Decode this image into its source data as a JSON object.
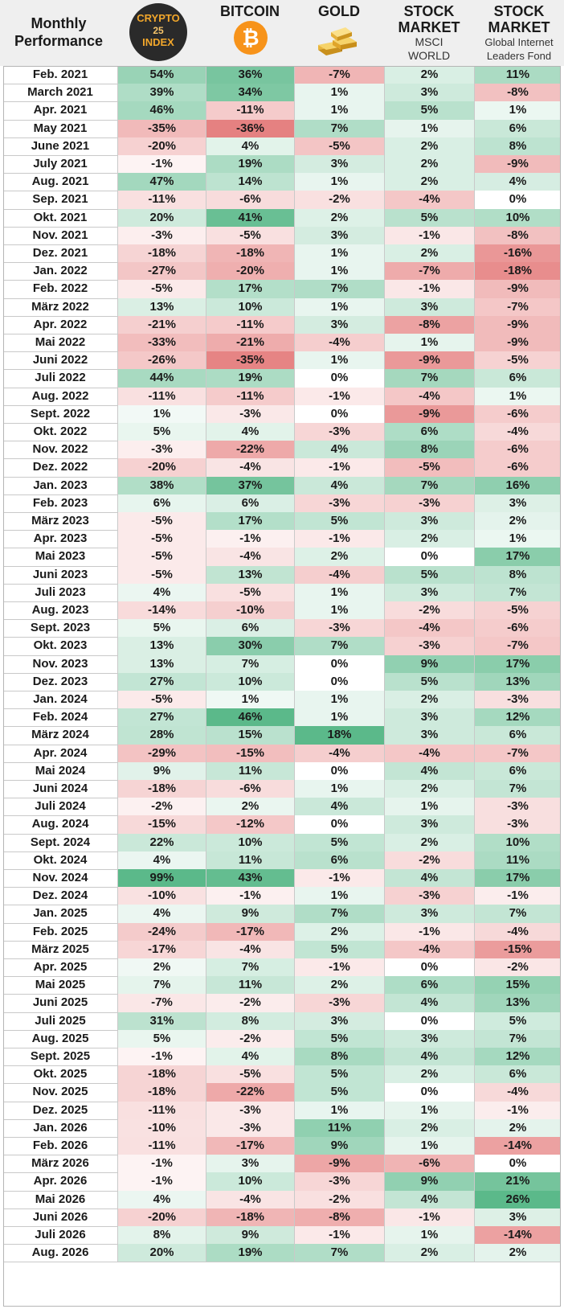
{
  "header": {
    "month_title": "Monthly Performance",
    "crypto_logo": {
      "line1": "CRYPTO",
      "line2": "25",
      "line3": "INDEX"
    },
    "bitcoin": "BITCOIN",
    "bitcoin_icon": "bitcoin-icon",
    "gold": "GOLD",
    "gold_icon": "gold-bars-icon",
    "msci_title": "STOCK MARKET",
    "msci_sub": "MSCI WORLD",
    "gil_title": "STOCK MARKET",
    "gil_sub": "Global Internet Leaders Fond"
  },
  "colors": {
    "positive": "#5bb98a",
    "negative": "#e06666",
    "neutral": "#ffffff"
  },
  "chart_data": {
    "type": "table",
    "columns": [
      "CRYPTO 25 INDEX",
      "BITCOIN",
      "GOLD",
      "STOCK MARKET MSCI WORLD",
      "STOCK MARKET Global Internet Leaders Fond"
    ],
    "rows": [
      {
        "month": "Feb. 2021",
        "values": [
          54,
          36,
          -7,
          2,
          11
        ]
      },
      {
        "month": "March 2021",
        "values": [
          39,
          34,
          1,
          3,
          -8
        ]
      },
      {
        "month": "Apr. 2021",
        "values": [
          46,
          -11,
          1,
          5,
          1
        ]
      },
      {
        "month": "May 2021",
        "values": [
          -35,
          -36,
          7,
          1,
          6
        ]
      },
      {
        "month": "June 2021",
        "values": [
          -20,
          4,
          -5,
          2,
          8
        ]
      },
      {
        "month": "July 2021",
        "values": [
          -1,
          19,
          3,
          2,
          -9
        ]
      },
      {
        "month": "Aug. 2021",
        "values": [
          47,
          14,
          1,
          2,
          4
        ]
      },
      {
        "month": "Sep. 2021",
        "values": [
          -11,
          -6,
          -2,
          -4,
          0
        ]
      },
      {
        "month": "Okt. 2021",
        "values": [
          20,
          41,
          2,
          5,
          10
        ]
      },
      {
        "month": "Nov. 2021",
        "values": [
          -3,
          -5,
          3,
          -1,
          -8
        ]
      },
      {
        "month": "Dez. 2021",
        "values": [
          -18,
          -18,
          1,
          2,
          -16
        ]
      },
      {
        "month": "Jan. 2022",
        "values": [
          -27,
          -20,
          1,
          -7,
          -18
        ]
      },
      {
        "month": "Feb. 2022",
        "values": [
          -5,
          17,
          7,
          -1,
          -9
        ]
      },
      {
        "month": "März 2022",
        "values": [
          13,
          10,
          1,
          3,
          -7
        ]
      },
      {
        "month": "Apr. 2022",
        "values": [
          -21,
          -11,
          3,
          -8,
          -9
        ]
      },
      {
        "month": "Mai 2022",
        "values": [
          -33,
          -21,
          -4,
          1,
          -9
        ]
      },
      {
        "month": "Juni 2022",
        "values": [
          -26,
          -35,
          1,
          -9,
          -5
        ]
      },
      {
        "month": "Juli 2022",
        "values": [
          44,
          19,
          0,
          7,
          6
        ]
      },
      {
        "month": "Aug. 2022",
        "values": [
          -11,
          -11,
          -1,
          -4,
          1
        ]
      },
      {
        "month": "Sept. 2022",
        "values": [
          1,
          -3,
          0,
          -9,
          -6
        ]
      },
      {
        "month": "Okt. 2022",
        "values": [
          5,
          4,
          -3,
          6,
          -4
        ]
      },
      {
        "month": "Nov. 2022",
        "values": [
          -3,
          -22,
          4,
          8,
          -6
        ]
      },
      {
        "month": "Dez. 2022",
        "values": [
          -20,
          -4,
          -1,
          -5,
          -6
        ]
      },
      {
        "month": "Jan. 2023",
        "values": [
          38,
          37,
          4,
          7,
          16
        ]
      },
      {
        "month": "Feb. 2023",
        "values": [
          6,
          6,
          -3,
          -3,
          3
        ]
      },
      {
        "month": "März 2023",
        "values": [
          -5,
          17,
          5,
          3,
          2
        ]
      },
      {
        "month": "Apr. 2023",
        "values": [
          -5,
          -1,
          -1,
          2,
          1
        ]
      },
      {
        "month": "Mai 2023",
        "values": [
          -5,
          -4,
          2,
          0,
          17
        ]
      },
      {
        "month": "Juni 2023",
        "values": [
          -5,
          13,
          -4,
          5,
          8
        ]
      },
      {
        "month": "Juli 2023",
        "values": [
          4,
          -5,
          1,
          3,
          7
        ]
      },
      {
        "month": "Aug. 2023",
        "values": [
          -14,
          -10,
          1,
          -2,
          -5
        ]
      },
      {
        "month": "Sept. 2023",
        "values": [
          5,
          6,
          -3,
          -4,
          -6
        ]
      },
      {
        "month": "Okt. 2023",
        "values": [
          13,
          30,
          7,
          -3,
          -7
        ]
      },
      {
        "month": "Nov. 2023",
        "values": [
          13,
          7,
          0,
          9,
          17
        ]
      },
      {
        "month": "Dez. 2023",
        "values": [
          27,
          10,
          0,
          5,
          13
        ]
      },
      {
        "month": "Jan. 2024",
        "values": [
          -5,
          1,
          1,
          2,
          -3
        ]
      },
      {
        "month": "Feb. 2024",
        "values": [
          27,
          46,
          1,
          3,
          12
        ]
      },
      {
        "month": "März 2024",
        "values": [
          28,
          15,
          18,
          3,
          6
        ]
      },
      {
        "month": "Apr. 2024",
        "values": [
          -29,
          -15,
          -4,
          -4,
          -7
        ]
      },
      {
        "month": "Mai 2024",
        "values": [
          9,
          11,
          0,
          4,
          6
        ]
      },
      {
        "month": "Juni 2024",
        "values": [
          -18,
          -6,
          1,
          2,
          7
        ]
      },
      {
        "month": "Juli 2024",
        "values": [
          -2,
          2,
          4,
          1,
          -3
        ]
      },
      {
        "month": "Aug. 2024",
        "values": [
          -15,
          -12,
          0,
          3,
          -3
        ]
      },
      {
        "month": "Sept. 2024",
        "values": [
          22,
          10,
          5,
          2,
          10
        ]
      },
      {
        "month": "Okt. 2024",
        "values": [
          4,
          11,
          6,
          -2,
          11
        ]
      },
      {
        "month": "Nov. 2024",
        "values": [
          99,
          43,
          -1,
          4,
          17
        ]
      },
      {
        "month": "Dez. 2024",
        "values": [
          -10,
          -1,
          1,
          -3,
          -1
        ]
      },
      {
        "month": "Jan. 2025",
        "values": [
          4,
          9,
          7,
          3,
          7
        ]
      },
      {
        "month": "Feb. 2025",
        "values": [
          -24,
          -17,
          2,
          -1,
          -4
        ]
      },
      {
        "month": "März 2025",
        "values": [
          -17,
          -4,
          5,
          -4,
          -15
        ]
      },
      {
        "month": "Apr. 2025",
        "values": [
          2,
          7,
          -1,
          0,
          -2
        ]
      },
      {
        "month": "Mai 2025",
        "values": [
          7,
          11,
          2,
          6,
          15
        ]
      },
      {
        "month": "Juni 2025",
        "values": [
          -7,
          -2,
          -3,
          4,
          13
        ]
      },
      {
        "month": "Juli 2025",
        "values": [
          31,
          8,
          3,
          0,
          5
        ]
      },
      {
        "month": "Aug. 2025",
        "values": [
          5,
          -2,
          5,
          3,
          7
        ]
      },
      {
        "month": "Sept. 2025",
        "values": [
          -1,
          4,
          8,
          4,
          12
        ]
      },
      {
        "month": "Okt. 2025",
        "values": [
          -18,
          -5,
          5,
          2,
          6
        ]
      },
      {
        "month": "Nov. 2025",
        "values": [
          -18,
          -22,
          5,
          0,
          -4
        ]
      },
      {
        "month": "Dez. 2025",
        "values": [
          -11,
          -3,
          1,
          1,
          -1
        ]
      },
      {
        "month": "Jan. 2026",
        "values": [
          -10,
          -3,
          11,
          2,
          2
        ]
      },
      {
        "month": "Feb. 2026",
        "values": [
          -11,
          -17,
          9,
          1,
          -14
        ]
      },
      {
        "month": "März 2026",
        "values": [
          -1,
          3,
          -9,
          -6,
          0
        ]
      },
      {
        "month": "Apr. 2026",
        "values": [
          -1,
          10,
          -3,
          9,
          21
        ]
      },
      {
        "month": "Mai 2026",
        "values": [
          4,
          -4,
          -2,
          4,
          26
        ]
      },
      {
        "month": "Juni 2026",
        "values": [
          -20,
          -18,
          -8,
          -1,
          3
        ]
      },
      {
        "month": "Juli 2026",
        "values": [
          8,
          9,
          -1,
          1,
          -14
        ]
      },
      {
        "month": "Aug. 2026",
        "values": [
          20,
          19,
          7,
          2,
          2
        ]
      }
    ]
  }
}
